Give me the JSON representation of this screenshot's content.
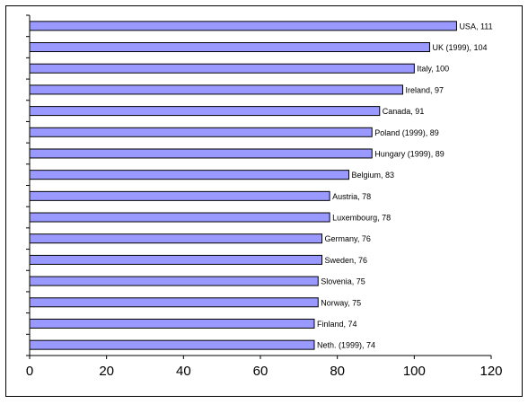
{
  "chart_data": {
    "type": "bar",
    "orientation": "horizontal",
    "title": "",
    "xlabel": "",
    "ylabel": "",
    "xlim": [
      0,
      120
    ],
    "xticks": [
      0,
      20,
      40,
      60,
      80,
      100,
      120
    ],
    "grid": false,
    "legend": "none",
    "bar_color": "#9999ff",
    "categories": [
      "USA, 111",
      "UK (1999), 104",
      "Italy, 100",
      "Ireland, 97",
      "Canada, 91",
      "Poland (1999), 89",
      "Hungary (1999), 89",
      "Belgium, 83",
      "Austria, 78",
      "Luxembourg, 78",
      "Germany, 76",
      "Sweden, 76",
      "Slovenia, 75",
      "Norway, 75",
      "Finland, 74",
      "Neth. (1999), 74"
    ],
    "values": [
      111,
      104,
      100,
      97,
      91,
      89,
      89,
      83,
      78,
      78,
      76,
      76,
      75,
      75,
      74,
      74
    ]
  }
}
